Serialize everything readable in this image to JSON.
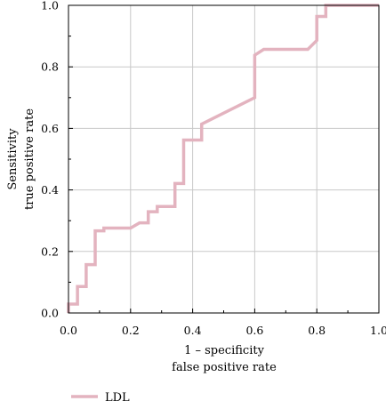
{
  "chart_data": {
    "type": "line",
    "xlabel": [
      "1 – specificity",
      "false positive rate"
    ],
    "ylabel": [
      "Sensitivity",
      "true positive rate"
    ],
    "xlim": [
      0,
      1
    ],
    "ylim": [
      0,
      1
    ],
    "x_ticks": [
      "0.0",
      "0.2",
      "0.4",
      "0.6",
      "0.8",
      "1.0"
    ],
    "y_ticks": [
      "0.0",
      "0.2",
      "0.4",
      "0.6",
      "0.8",
      "1.0"
    ],
    "grid": true,
    "legend_position": "bottom-left",
    "series": [
      {
        "name": "LDL",
        "color": "#e3b3bf",
        "x": [
          0.0,
          0.0,
          0.029,
          0.029,
          0.057,
          0.057,
          0.086,
          0.086,
          0.114,
          0.114,
          0.2,
          0.229,
          0.257,
          0.257,
          0.286,
          0.286,
          0.343,
          0.343,
          0.371,
          0.371,
          0.429,
          0.429,
          0.6,
          0.6,
          0.629,
          0.771,
          0.8,
          0.8,
          0.829,
          0.829,
          1.0
        ],
        "y": [
          0.0,
          0.029,
          0.029,
          0.086,
          0.086,
          0.157,
          0.157,
          0.267,
          0.267,
          0.276,
          0.276,
          0.293,
          0.293,
          0.329,
          0.329,
          0.346,
          0.346,
          0.421,
          0.421,
          0.562,
          0.562,
          0.614,
          0.7,
          0.838,
          0.857,
          0.857,
          0.886,
          0.964,
          0.964,
          1.0,
          1.0
        ]
      }
    ]
  }
}
